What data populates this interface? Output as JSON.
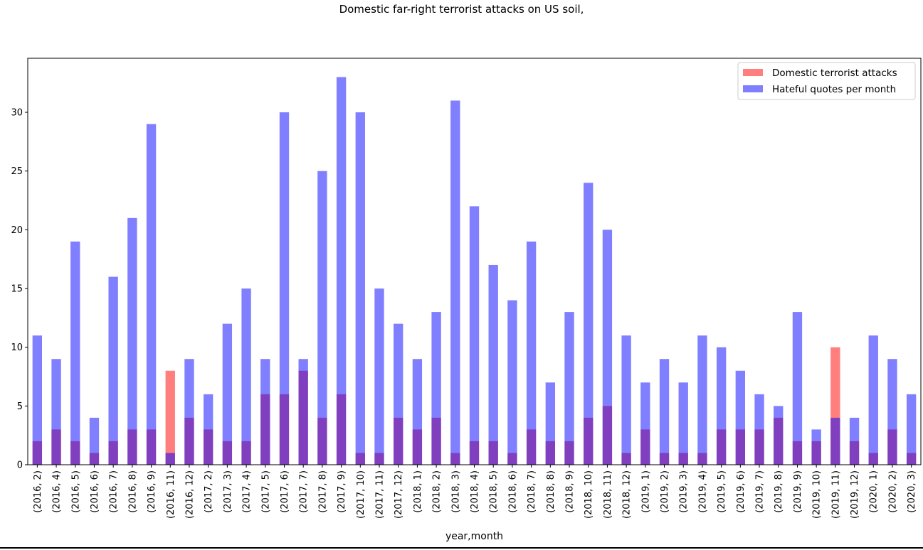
{
  "chart_data": {
    "type": "bar",
    "title": "Domestic far-right terrorist attacks on US soil,",
    "xlabel": "year,month",
    "ylabel": "",
    "ylim": [
      0,
      34.6
    ],
    "yticks": [
      0,
      5,
      10,
      15,
      20,
      25,
      30
    ],
    "grid": false,
    "legend_position": "top-right",
    "overlay": true,
    "categories": [
      "(2016, 2)",
      "(2016, 4)",
      "(2016, 5)",
      "(2016, 6)",
      "(2016, 7)",
      "(2016, 8)",
      "(2016, 9)",
      "(2016, 11)",
      "(2016, 12)",
      "(2017, 2)",
      "(2017, 3)",
      "(2017, 4)",
      "(2017, 5)",
      "(2017, 6)",
      "(2017, 7)",
      "(2017, 8)",
      "(2017, 9)",
      "(2017, 10)",
      "(2017, 11)",
      "(2017, 12)",
      "(2018, 1)",
      "(2018, 2)",
      "(2018, 3)",
      "(2018, 4)",
      "(2018, 5)",
      "(2018, 6)",
      "(2018, 7)",
      "(2018, 8)",
      "(2018, 9)",
      "(2018, 10)",
      "(2018, 11)",
      "(2018, 12)",
      "(2019, 1)",
      "(2019, 2)",
      "(2019, 3)",
      "(2019, 4)",
      "(2019, 5)",
      "(2019, 6)",
      "(2019, 7)",
      "(2019, 8)",
      "(2019, 9)",
      "(2019, 10)",
      "(2019, 11)",
      "(2019, 12)",
      "(2020, 1)",
      "(2020, 2)",
      "(2020, 3)"
    ],
    "series": [
      {
        "name": "Domestic terrorist attacks",
        "color": "#ff0000",
        "opacity": 0.5,
        "values": [
          2,
          3,
          2,
          1,
          2,
          3,
          3,
          8,
          4,
          3,
          2,
          2,
          6,
          6,
          8,
          4,
          6,
          1,
          1,
          4,
          3,
          4,
          1,
          2,
          2,
          1,
          3,
          2,
          2,
          4,
          5,
          1,
          3,
          1,
          1,
          1,
          3,
          3,
          3,
          4,
          2,
          2,
          10,
          2,
          1,
          3,
          1
        ]
      },
      {
        "name": "Hateful quotes per month",
        "color": "#0000ff",
        "opacity": 0.5,
        "values": [
          11,
          9,
          19,
          4,
          16,
          21,
          29,
          1,
          9,
          6,
          12,
          15,
          9,
          30,
          9,
          25,
          33,
          30,
          15,
          12,
          9,
          13,
          31,
          22,
          17,
          14,
          19,
          7,
          13,
          24,
          20,
          11,
          7,
          9,
          7,
          11,
          10,
          8,
          6,
          5,
          13,
          3,
          4,
          4,
          11,
          9,
          6
        ]
      }
    ]
  }
}
